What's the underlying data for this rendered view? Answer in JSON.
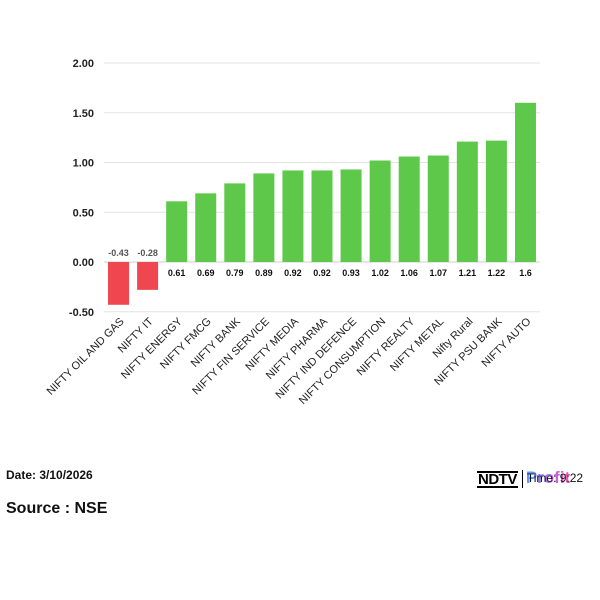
{
  "chart_data": {
    "type": "bar",
    "categories": [
      "NIFTY OIL AND GAS",
      "NIFTY IT",
      "NIFTY ENERGY",
      "NIFTY FMCG",
      "NIFTY BANK",
      "NIFTY FIN SERVICE",
      "NIFTY MEDIA",
      "NIFTY PHARMA",
      "NIFTY IND DEFENCE",
      "NIFTY CONSUMPTION",
      "NIFTY REALTY",
      "NIFTY METAL",
      "Nifty Rural",
      "NIFTY PSU BANK",
      "NIFTY AUTO"
    ],
    "values": [
      -0.43,
      -0.28,
      0.61,
      0.69,
      0.79,
      0.89,
      0.92,
      0.92,
      0.93,
      1.02,
      1.06,
      1.07,
      1.21,
      1.22,
      1.6
    ],
    "value_labels": [
      "-0.43",
      "-0.28",
      "0.61",
      "0.69",
      "0.79",
      "0.89",
      "0.92",
      "0.92",
      "0.93",
      "1.02",
      "1.06",
      "1.07",
      "1.21",
      "1.22",
      "1.6"
    ],
    "y_ticks": [
      "2.00",
      "1.50",
      "1.00",
      "0.50",
      "0.00",
      "-0.50"
    ],
    "ylim": [
      -0.5,
      2.0
    ],
    "grid": "horizontal",
    "title": "",
    "xlabel": "",
    "ylabel": "",
    "colors": {
      "positive": "#5dc84a",
      "negative": "#f0464f",
      "grid": "#e3e3e3"
    }
  },
  "footer": {
    "date": "Date: 3/10/2026",
    "source": "Source : NSE",
    "brand": "NDTV",
    "brand_sub": "Profit",
    "time": "Time: 9:22"
  }
}
